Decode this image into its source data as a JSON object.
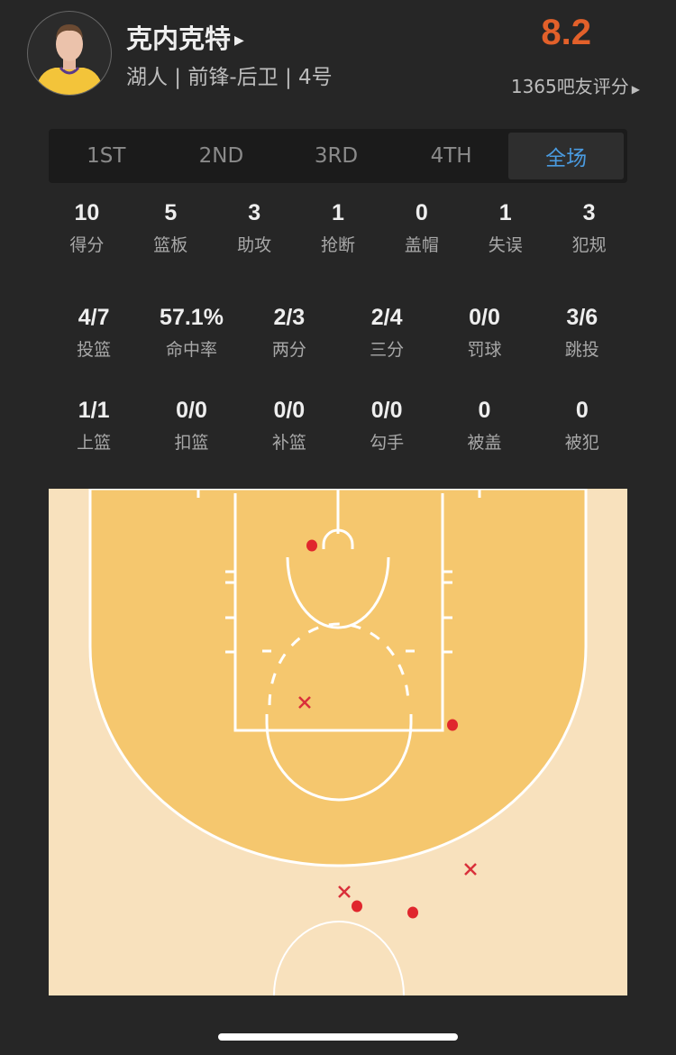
{
  "player": {
    "name": "克内克特",
    "info": "湖人 | 前锋-后卫 | 4号",
    "rating": "8.2",
    "raters": "1365吧友评分"
  },
  "tabs": [
    {
      "label": "1ST"
    },
    {
      "label": "2ND"
    },
    {
      "label": "3RD"
    },
    {
      "label": "4TH"
    },
    {
      "label": "全场",
      "active": true
    }
  ],
  "stats_row1": [
    {
      "v": "10",
      "l": "得分"
    },
    {
      "v": "5",
      "l": "篮板"
    },
    {
      "v": "3",
      "l": "助攻"
    },
    {
      "v": "1",
      "l": "抢断"
    },
    {
      "v": "0",
      "l": "盖帽"
    },
    {
      "v": "1",
      "l": "失误"
    },
    {
      "v": "3",
      "l": "犯规"
    }
  ],
  "stats_row2": [
    {
      "v": "4/7",
      "l": "投篮"
    },
    {
      "v": "57.1%",
      "l": "命中率"
    },
    {
      "v": "2/3",
      "l": "两分"
    },
    {
      "v": "2/4",
      "l": "三分"
    },
    {
      "v": "0/0",
      "l": "罚球"
    },
    {
      "v": "3/6",
      "l": "跳投"
    }
  ],
  "stats_row3": [
    {
      "v": "1/1",
      "l": "上篮"
    },
    {
      "v": "0/0",
      "l": "扣篮"
    },
    {
      "v": "0/0",
      "l": "补篮"
    },
    {
      "v": "0/0",
      "l": "勾手"
    },
    {
      "v": "0",
      "l": "被盖"
    },
    {
      "v": "0",
      "l": "被犯"
    }
  ],
  "shot_chart": {
    "made_color": "#e0262d",
    "miss_color": "#d9303a",
    "court_paint": "#f5c76e",
    "court_floor": "#f8e1bd",
    "shots": [
      "made",
      "miss",
      "made",
      "miss",
      "miss",
      "made",
      "made"
    ]
  },
  "colors": {
    "accent": "#4a9be0",
    "rating": "#e2602a"
  }
}
